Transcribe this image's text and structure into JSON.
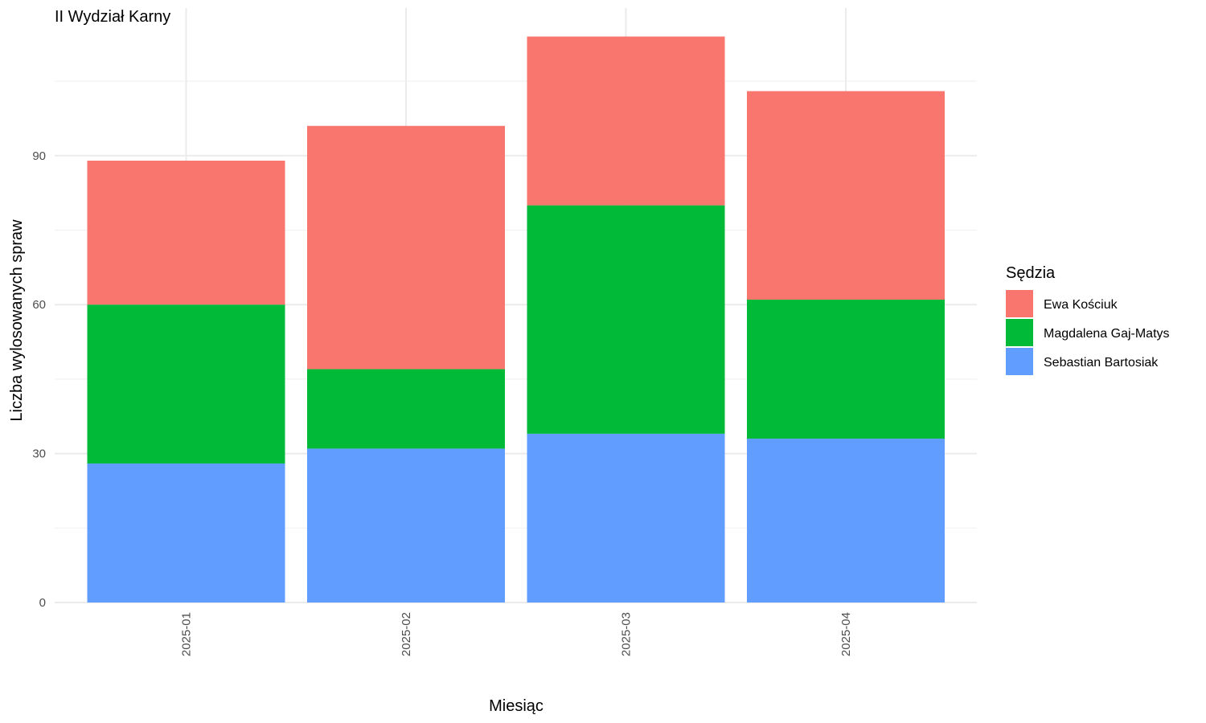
{
  "chart_data": {
    "type": "bar",
    "stacked": true,
    "title": "II Wydział Karny",
    "xlabel": "Miesiąc",
    "ylabel": "Liczba wylosowanych spraw",
    "categories": [
      "2025-01",
      "2025-02",
      "2025-03",
      "2025-04"
    ],
    "ylim": [
      0,
      119
    ],
    "yticks": [
      0,
      30,
      60,
      90
    ],
    "grid": true,
    "legend": {
      "title": "Sędzia",
      "position": "right"
    },
    "series": [
      {
        "name": "Sebastian Bartosiak",
        "color": "#619CFF",
        "values": [
          28,
          31,
          34,
          33
        ]
      },
      {
        "name": "Magdalena Gaj-Matys",
        "color": "#00BA38",
        "values": [
          32,
          16,
          46,
          28
        ]
      },
      {
        "name": "Ewa Kościuk",
        "color": "#F8766D",
        "values": [
          29,
          49,
          34,
          42
        ]
      }
    ]
  }
}
